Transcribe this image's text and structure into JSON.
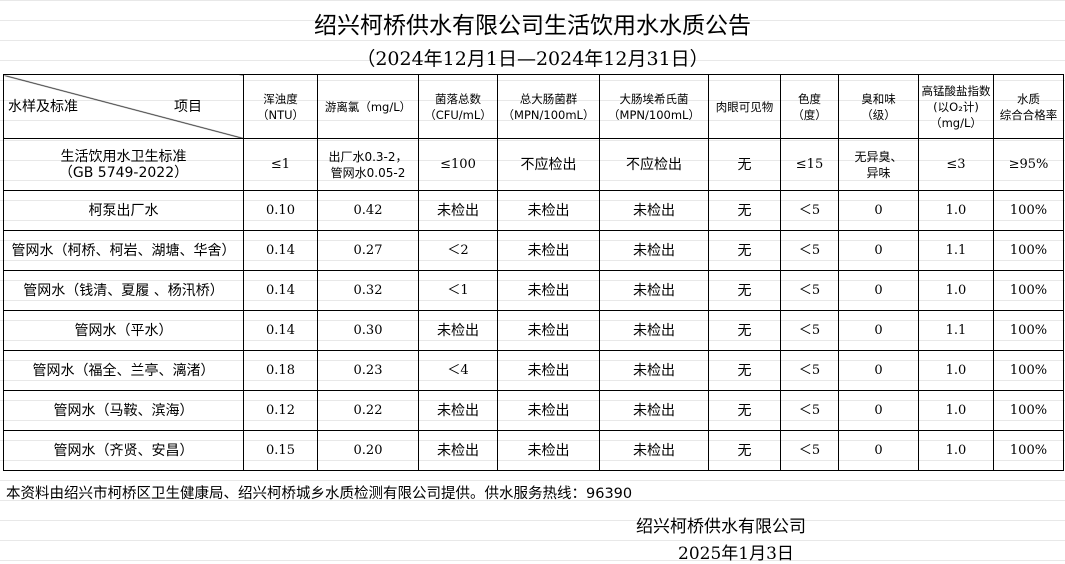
{
  "title": "绍兴柯桥供水有限公司生活饮用水水质公告",
  "period": "（2024年12月1日—2024年12月31日）",
  "header": {
    "corner_left": "水样及标准",
    "corner_right": "项目",
    "columns": [
      "浑浊度\n（NTU）",
      "游离氯（mg/L）",
      "菌落总数\n（CFU/mL）",
      "总大肠菌群\n（MPN/100mL）",
      "大肠埃希氏菌\n（MPN/100mL）",
      "肉眼可见物",
      "色度\n（度）",
      "臭和味\n（级）",
      "高锰酸盐指数(以O₂计)\n（mg/L）",
      "水质\n综合合格率"
    ]
  },
  "rows": [
    {
      "name": "生活饮用水卫生标准\n（GB 5749-2022）",
      "values": [
        "≤1",
        "出厂水0.3-2，\n管网水0.05-2",
        "≤100",
        "不应检出",
        "不应检出",
        "无",
        "≤15",
        "无异臭、\n异味",
        "≤3",
        "≥95%"
      ]
    },
    {
      "name": "柯泵出厂水",
      "values": [
        "0.10",
        "0.42",
        "未检出",
        "未检出",
        "未检出",
        "无",
        "＜5",
        "0",
        "1.0",
        "100%"
      ]
    },
    {
      "name": "管网水（柯桥、柯岩、湖塘、华舍）",
      "values": [
        "0.14",
        "0.27",
        "＜2",
        "未检出",
        "未检出",
        "无",
        "＜5",
        "0",
        "1.1",
        "100%"
      ]
    },
    {
      "name": "管网水（钱清、夏履 、杨汛桥）",
      "values": [
        "0.14",
        "0.32",
        "＜1",
        "未检出",
        "未检出",
        "无",
        "＜5",
        "0",
        "1.0",
        "100%"
      ]
    },
    {
      "name": "管网水（平水）",
      "values": [
        "0.14",
        "0.30",
        "未检出",
        "未检出",
        "未检出",
        "无",
        "＜5",
        "0",
        "1.1",
        "100%"
      ]
    },
    {
      "name": "管网水（福全、兰亭、漓渚）",
      "values": [
        "0.18",
        "0.23",
        "＜4",
        "未检出",
        "未检出",
        "无",
        "＜5",
        "0",
        "1.0",
        "100%"
      ]
    },
    {
      "name": "管网水（马鞍、滨海）",
      "values": [
        "0.12",
        "0.22",
        "未检出",
        "未检出",
        "未检出",
        "无",
        "＜5",
        "0",
        "1.0",
        "100%"
      ]
    },
    {
      "name": "管网水（齐贤、安昌）",
      "values": [
        "0.15",
        "0.20",
        "未检出",
        "未检出",
        "未检出",
        "无",
        "＜5",
        "0",
        "1.0",
        "100%"
      ]
    }
  ],
  "note": "本资料由绍兴市柯桥区卫生健康局、绍兴柯桥城乡水质检测有限公司提供。供水服务热线：96390",
  "organization": "绍兴柯桥供水有限公司",
  "date": "2025年1月3日"
}
